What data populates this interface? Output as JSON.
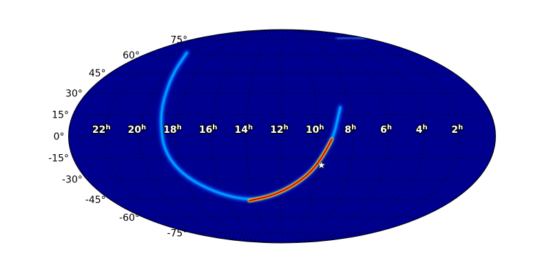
{
  "chart_data": {
    "type": "heatmap",
    "projection": "mollweide",
    "colormap": "jet",
    "background_color": "#00008f",
    "grid": true,
    "ra_tick_labels": [
      "22h",
      "20h",
      "18h",
      "16h",
      "14h",
      "12h",
      "10h",
      "8h",
      "6h",
      "4h",
      "2h"
    ],
    "ra_tick_values_hours": [
      22,
      20,
      18,
      16,
      14,
      12,
      10,
      8,
      6,
      4,
      2
    ],
    "dec_tick_labels": [
      "75°",
      "60°",
      "45°",
      "30°",
      "15°",
      "0°",
      "-15°",
      "-30°",
      "-45°",
      "-60°",
      "-75°"
    ],
    "dec_tick_values_deg": [
      75,
      60,
      45,
      30,
      15,
      0,
      -15,
      -30,
      -45,
      -60,
      -75
    ],
    "marker": {
      "symbol": "star",
      "ra_hours": 9.7,
      "dec_deg": -20,
      "color": "#ffffff"
    },
    "probability_arc": {
      "description_color_peak": "#ff0000",
      "path_ra_dec": [
        [
          20.6,
          62
        ],
        [
          19.6,
          45
        ],
        [
          19.1,
          25
        ],
        [
          18.9,
          10
        ],
        [
          18.7,
          -10
        ],
        [
          18.0,
          -27
        ],
        [
          16.4,
          -40
        ],
        [
          14.3,
          -46
        ],
        [
          12.6,
          -42
        ],
        [
          11.2,
          -34
        ],
        [
          10.2,
          -24
        ],
        [
          9.6,
          -12
        ],
        [
          9.1,
          0
        ],
        [
          8.8,
          13
        ],
        [
          8.6,
          20
        ]
      ],
      "peak_segment_ra_dec": [
        [
          14.3,
          -46
        ],
        [
          12.6,
          -42
        ],
        [
          11.2,
          -34
        ],
        [
          10.2,
          -24
        ],
        [
          9.6,
          -12
        ],
        [
          9.2,
          -2
        ]
      ]
    }
  }
}
